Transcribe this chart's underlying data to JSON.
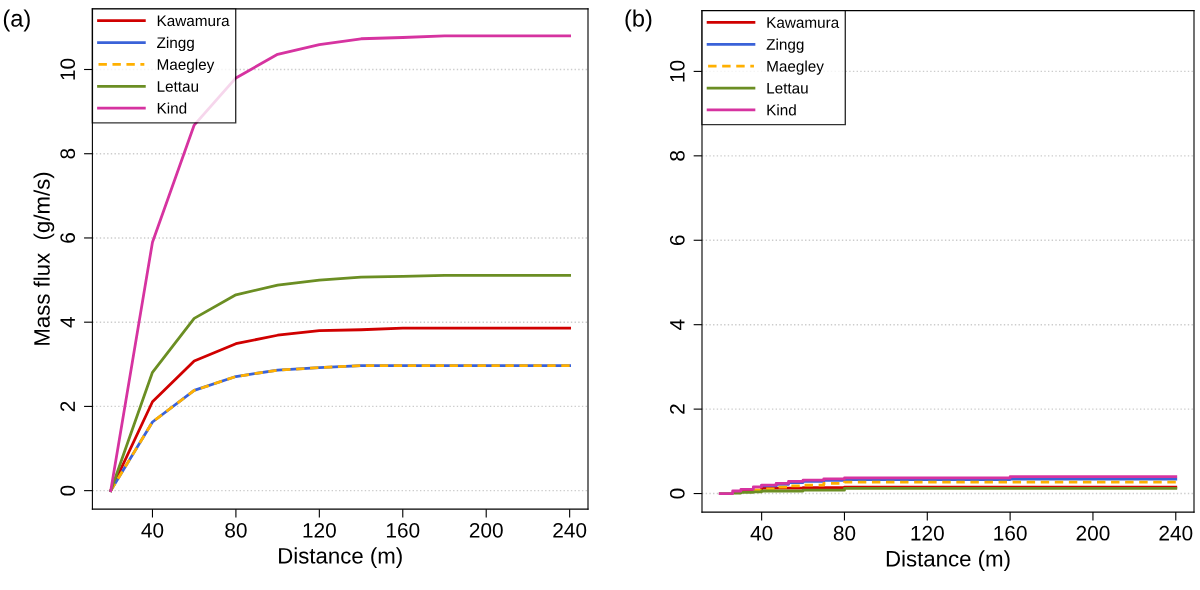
{
  "chart_data": [
    {
      "type": "line",
      "annotations": [
        "(a)"
      ],
      "xlabel": "Distance (m)",
      "ylabel": "Mass flux  (g/m/s)",
      "x": [
        20,
        40,
        60,
        80,
        100,
        120,
        140,
        160,
        180,
        200,
        220,
        240
      ],
      "xlim": [
        11.2,
        248.8
      ],
      "xticks": [
        40,
        80,
        120,
        160,
        200,
        240
      ],
      "ylim": [
        -0.44,
        11.44
      ],
      "yticks": [
        0,
        2,
        4,
        6,
        8,
        10
      ],
      "grid": "y",
      "legend": "top left",
      "series": [
        {
          "name": "Kawamura",
          "color": "#d00000",
          "values": [
            0,
            2.11,
            3.08,
            3.49,
            3.69,
            3.8,
            3.82,
            3.86,
            3.86,
            3.86,
            3.86,
            3.86
          ]
        },
        {
          "name": "Zingg",
          "color": "#3a62d8",
          "values": [
            0,
            1.63,
            2.38,
            2.71,
            2.86,
            2.92,
            2.97,
            2.97,
            2.97,
            2.97,
            2.97,
            2.97
          ]
        },
        {
          "name": "Maegley",
          "color": "#ffb000",
          "line_style": "dashed",
          "values": [
            0,
            1.63,
            2.38,
            2.71,
            2.86,
            2.92,
            2.97,
            2.97,
            2.97,
            2.97,
            2.97,
            2.97
          ]
        },
        {
          "name": "Lettau",
          "color": "#6b8e23",
          "values": [
            0,
            2.81,
            4.09,
            4.65,
            4.88,
            5.0,
            5.07,
            5.09,
            5.11,
            5.11,
            5.11,
            5.11
          ]
        },
        {
          "name": "Kind",
          "color": "#d633a0",
          "values": [
            0,
            5.9,
            8.68,
            9.8,
            10.36,
            10.59,
            10.73,
            10.76,
            10.8,
            10.8,
            10.8,
            10.8
          ]
        }
      ]
    },
    {
      "type": "step",
      "annotations": [
        "(b)"
      ],
      "xlabel": "Distance (m)",
      "x": [
        20,
        26,
        30,
        36,
        40,
        47,
        53,
        60,
        70,
        80,
        160,
        240
      ],
      "xlim": [
        11.2,
        248.8
      ],
      "xticks": [
        40,
        80,
        120,
        160,
        200,
        240
      ],
      "ylim": [
        -0.44,
        11.44
      ],
      "yticks": [
        0,
        2,
        4,
        6,
        8,
        10
      ],
      "grid": "y",
      "legend": "top left",
      "series": [
        {
          "name": "Kawamura",
          "color": "#d00000",
          "values": [
            null,
            null,
            0.05,
            0.08,
            0.13,
            0.13,
            0.13,
            0.14,
            0.14,
            0.15,
            0.15,
            0.15
          ]
        },
        {
          "name": "Zingg",
          "color": "#3a62d8",
          "values": [
            null,
            null,
            null,
            null,
            0.18,
            0.22,
            0.26,
            0.29,
            0.31,
            0.33,
            0.34,
            0.34
          ]
        },
        {
          "name": "Maegley",
          "color": "#ffb000",
          "line_style": "dashed",
          "values": [
            null,
            null,
            null,
            0.08,
            0.11,
            0.15,
            0.18,
            0.2,
            0.24,
            0.27,
            0.27,
            0.27
          ]
        },
        {
          "name": "Lettau",
          "color": "#6b8e23",
          "values": [
            0,
            0.01,
            0.03,
            0.04,
            0.06,
            0.06,
            0.06,
            0.08,
            0.08,
            0.12,
            0.12,
            0.12
          ]
        },
        {
          "name": "Kind",
          "color": "#d633a0",
          "values": [
            0,
            0.06,
            0.1,
            0.16,
            0.2,
            0.24,
            0.29,
            0.32,
            0.35,
            0.37,
            0.4,
            0.4
          ]
        }
      ]
    }
  ]
}
